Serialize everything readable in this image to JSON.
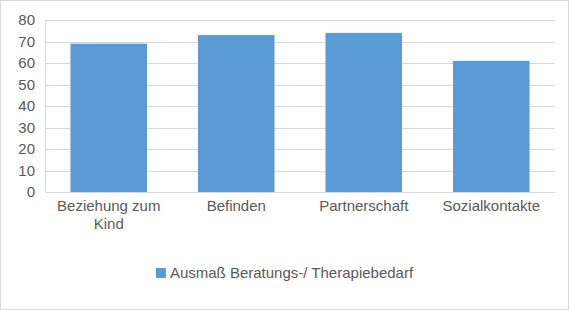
{
  "chart_data": {
    "type": "bar",
    "categories": [
      "Beziehung zum Kind",
      "Befinden",
      "Partnerschaft",
      "Sozialkontakte"
    ],
    "series": [
      {
        "name": "Ausmaß Beratungs-/ Therapiebedarf",
        "color": "#5b9bd5",
        "values": [
          69,
          73,
          74,
          61
        ]
      }
    ],
    "ylim": [
      0,
      80
    ],
    "yticks": [
      0,
      10,
      20,
      30,
      40,
      50,
      60,
      70,
      80
    ],
    "grid": true,
    "legend": "bottom"
  }
}
